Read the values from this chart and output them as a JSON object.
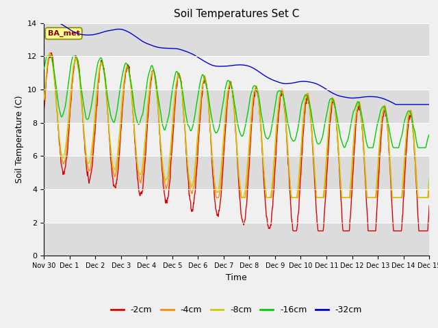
{
  "title": "Soil Temperatures Set C",
  "xlabel": "Time",
  "ylabel": "Soil Temperature (C)",
  "ylim": [
    0,
    14
  ],
  "annotation_text": "BA_met",
  "background_color": "#ffffff",
  "plot_bg_color": "#ffffff",
  "legend_entries": [
    "-2cm",
    "-4cm",
    "-8cm",
    "-16cm",
    "-32cm"
  ],
  "line_colors": [
    "#dd0000",
    "#ff8800",
    "#cccc00",
    "#00cc00",
    "#0000cc"
  ],
  "x_tick_labels": [
    "Nov 30",
    "Dec 1",
    "Dec 2",
    "Dec 3",
    "Dec 4",
    "Dec 5",
    "Dec 6",
    "Dec 7",
    "Dec 8",
    "Dec 9",
    "Dec 10",
    "Dec 11",
    "Dec 12",
    "Dec 13",
    "Dec 14",
    "Dec 15"
  ],
  "n_days": 15,
  "points_per_day": 72,
  "band_colors": [
    "#ffffff",
    "#e0e0e0"
  ],
  "yticks": [
    0,
    2,
    4,
    6,
    8,
    10,
    12,
    14
  ]
}
